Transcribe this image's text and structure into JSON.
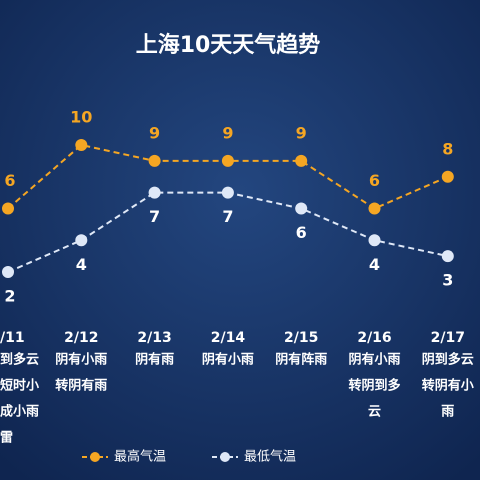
{
  "chart_data": {
    "type": "line",
    "title": "上海10天天气趋势",
    "categories": [
      "/11",
      "2/12",
      "2/13",
      "2/14",
      "2/15",
      "2/16",
      "2/17"
    ],
    "descriptions": [
      [
        "到多云",
        "短时小",
        "成小雨",
        "雷"
      ],
      [
        "阴有小雨",
        "转阴有雨"
      ],
      [
        "阴有雨"
      ],
      [
        "阴有小雨"
      ],
      [
        "阴有阵雨"
      ],
      [
        "阴有小雨",
        "转阴到多",
        "云"
      ],
      [
        "阴到多云",
        "转阴有小",
        "雨"
      ]
    ],
    "series": [
      {
        "name": "最高气温",
        "color": "#f5a623",
        "values": [
          6,
          10,
          9,
          9,
          9,
          6,
          8
        ]
      },
      {
        "name": "最低气温",
        "color": "#dfe8f7",
        "values": [
          2,
          4,
          7,
          7,
          6,
          4,
          3
        ]
      }
    ]
  }
}
